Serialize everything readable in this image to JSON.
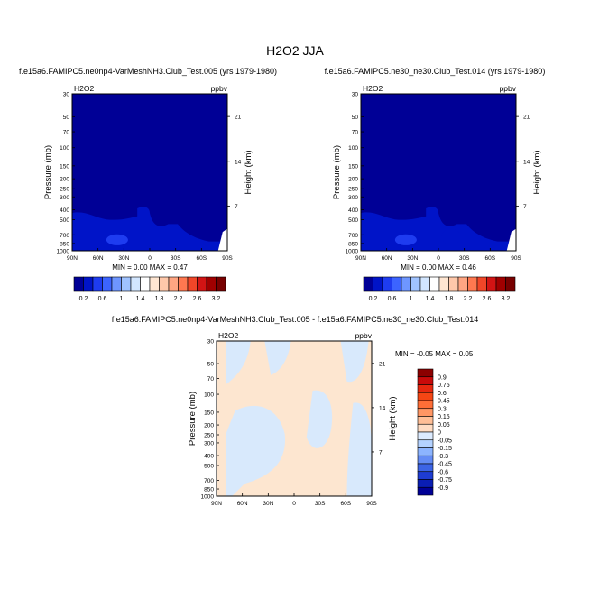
{
  "page": {
    "title": "H2O2 JJA"
  },
  "chart_data": [
    {
      "type": "heatmap",
      "id": "panel_a",
      "title": "f.e15a6.FAMIPC5.ne0np4-VarMeshNH3.Club_Test.005 (yrs 1979-1980)",
      "variable": "H2O2",
      "units": "ppbv",
      "xlabel": "",
      "ylabel": "Pressure (mb)",
      "y2label": "Height (km)",
      "x_ticks": [
        "90N",
        "60N",
        "30N",
        "0",
        "30S",
        "60S",
        "90S"
      ],
      "y_ticks": [
        "30",
        "50",
        "70",
        "100",
        "150",
        "200",
        "250",
        "300",
        "400",
        "500",
        "700",
        "850",
        "1000"
      ],
      "y_tick_values": [
        30,
        50,
        70,
        100,
        150,
        200,
        250,
        300,
        400,
        500,
        700,
        850,
        1000
      ],
      "y_scale": "log",
      "ylim": [
        1000,
        30
      ],
      "y2_ticks": [
        "21",
        "14",
        "7"
      ],
      "y2_tick_values": [
        21,
        14,
        7
      ],
      "stats_label": "MIN =  0.00  MAX =  0.47",
      "background_color": "#000096",
      "colorbar": {
        "labels": [
          "0.2",
          "0.6",
          "1",
          "1.4",
          "1.8",
          "2.2",
          "2.6",
          "3.2"
        ],
        "colors": [
          "#000096",
          "#0014c8",
          "#1e3cf0",
          "#3c64ff",
          "#6e96ff",
          "#a0c3ff",
          "#d2e6ff",
          "#ffffff",
          "#ffe6d2",
          "#ffc8aa",
          "#ffa582",
          "#ff7850",
          "#f04628",
          "#d21414",
          "#a00000",
          "#780000"
        ]
      }
    },
    {
      "type": "heatmap",
      "id": "panel_b",
      "title": "f.e15a6.FAMIPC5.ne30_ne30.Club_Test.014 (yrs 1979-1980)",
      "variable": "H2O2",
      "units": "ppbv",
      "xlabel": "",
      "ylabel": "Pressure (mb)",
      "y2label": "Height (km)",
      "x_ticks": [
        "90N",
        "60N",
        "30N",
        "0",
        "30S",
        "60S",
        "90S"
      ],
      "y_ticks": [
        "30",
        "50",
        "70",
        "100",
        "150",
        "200",
        "250",
        "300",
        "400",
        "500",
        "700",
        "850",
        "1000"
      ],
      "y_tick_values": [
        30,
        50,
        70,
        100,
        150,
        200,
        250,
        300,
        400,
        500,
        700,
        850,
        1000
      ],
      "y_scale": "log",
      "ylim": [
        1000,
        30
      ],
      "y2_ticks": [
        "21",
        "14",
        "7"
      ],
      "y2_tick_values": [
        21,
        14,
        7
      ],
      "stats_label": "MIN =  0.00  MAX =  0.46",
      "background_color": "#000096",
      "colorbar": {
        "labels": [
          "0.2",
          "0.6",
          "1",
          "1.4",
          "1.8",
          "2.2",
          "2.6",
          "3.2"
        ],
        "colors": [
          "#000096",
          "#0014c8",
          "#1e3cf0",
          "#3c64ff",
          "#6e96ff",
          "#a0c3ff",
          "#d2e6ff",
          "#ffffff",
          "#ffe6d2",
          "#ffc8aa",
          "#ffa582",
          "#ff7850",
          "#f04628",
          "#d21414",
          "#a00000",
          "#780000"
        ]
      }
    },
    {
      "type": "heatmap",
      "id": "panel_diff",
      "title": "f.e15a6.FAMIPC5.ne0np4-VarMeshNH3.Club_Test.005 - f.e15a6.FAMIPC5.ne30_ne30.Club_Test.014",
      "variable": "H2O2",
      "units": "ppbv",
      "xlabel": "",
      "ylabel": "Pressure (mb)",
      "y2label": "Height (km)",
      "x_ticks": [
        "90N",
        "60N",
        "30N",
        "0",
        "30S",
        "60S",
        "90S"
      ],
      "y_ticks": [
        "30",
        "50",
        "70",
        "100",
        "150",
        "200",
        "250",
        "300",
        "400",
        "500",
        "700",
        "850",
        "1000"
      ],
      "y_tick_values": [
        30,
        50,
        70,
        100,
        150,
        200,
        250,
        300,
        400,
        500,
        700,
        850,
        1000
      ],
      "y_scale": "log",
      "ylim": [
        1000,
        30
      ],
      "y2_ticks": [
        "21",
        "14",
        "7"
      ],
      "y2_tick_values": [
        21,
        14,
        7
      ],
      "stats_label": "MIN = -0.05  MAX =  0.05",
      "background_color": "#fde6d0",
      "colorbar": {
        "labels": [
          "0.9",
          "0.75",
          "0.6",
          "0.45",
          "0.3",
          "0.15",
          "0.05",
          "0",
          "-0.05",
          "-0.15",
          "-0.3",
          "-0.45",
          "-0.6",
          "-0.75",
          "-0.9"
        ],
        "colors": [
          "#8c0000",
          "#c80a0a",
          "#e6280f",
          "#f54614",
          "#ff6e37",
          "#ff9664",
          "#ffbe96",
          "#ffdcc3",
          "#dcebff",
          "#b4d2ff",
          "#8cb4ff",
          "#648cf5",
          "#3c64e6",
          "#1e3cd2",
          "#0a1eb4",
          "#000096"
        ]
      }
    }
  ]
}
